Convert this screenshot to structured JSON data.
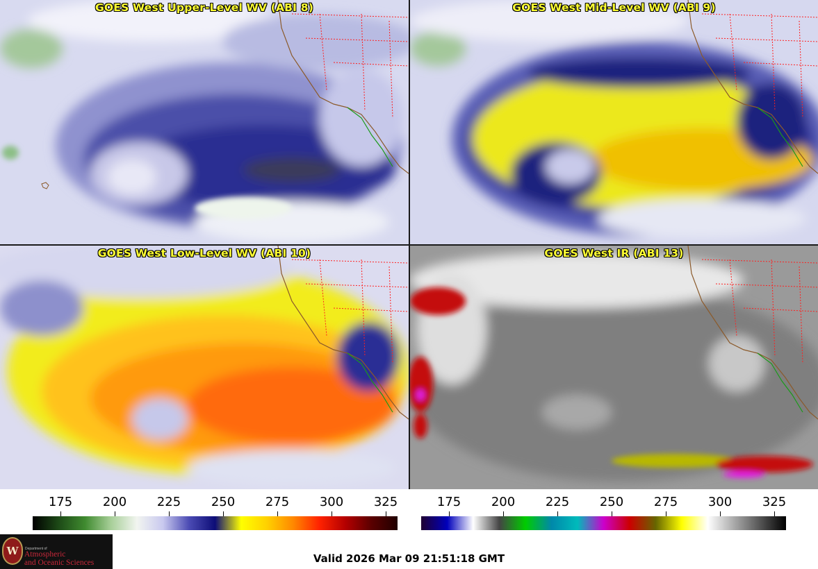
{
  "panels": [
    {
      "title": "GOES West Upper-Level WV (ABI 8)"
    },
    {
      "title": "GOES West Mid-Level WV (ABI 9)"
    },
    {
      "title": "GOES West Low-Level WV (ABI 10)"
    },
    {
      "title": "GOES West IR (ABI 13)"
    }
  ],
  "colorbars": {
    "wv": {
      "ticks": [
        "175",
        "200",
        "225",
        "250",
        "275",
        "300",
        "325"
      ],
      "colors": [
        "#000000",
        "#1d4a17",
        "#3f8a2f",
        "#a7cf98",
        "#f2f5f0",
        "#c9c9ef",
        "#4b4bb4",
        "#0d0d77",
        "#ffff00",
        "#ffd000",
        "#ff8800",
        "#ff2200",
        "#b40000",
        "#5a0000",
        "#200000"
      ]
    },
    "ir": {
      "ticks": [
        "175",
        "200",
        "225",
        "250",
        "275",
        "300",
        "325"
      ],
      "colors": [
        "#200033",
        "#0000bb",
        "#ffffff",
        "#444444",
        "#00cc00",
        "#0088aa",
        "#00bbbb",
        "#cc00cc",
        "#cc0000",
        "#666600",
        "#ffff00",
        "#ffffff",
        "#aaaaaa",
        "#555555",
        "#000000"
      ]
    }
  },
  "logo": {
    "line1": "Department of",
    "line2": "Atmospheric",
    "line3": "and Oceanic Sciences",
    "seal_letter": "W"
  },
  "valid_time": "Valid 2026 Mar 09 21:51:18 GMT",
  "colors": {
    "title": "#ffff33",
    "coast": "#8b5a2b",
    "state_lines": "#ff2020",
    "mexico_coast": "#1a9a1a"
  }
}
